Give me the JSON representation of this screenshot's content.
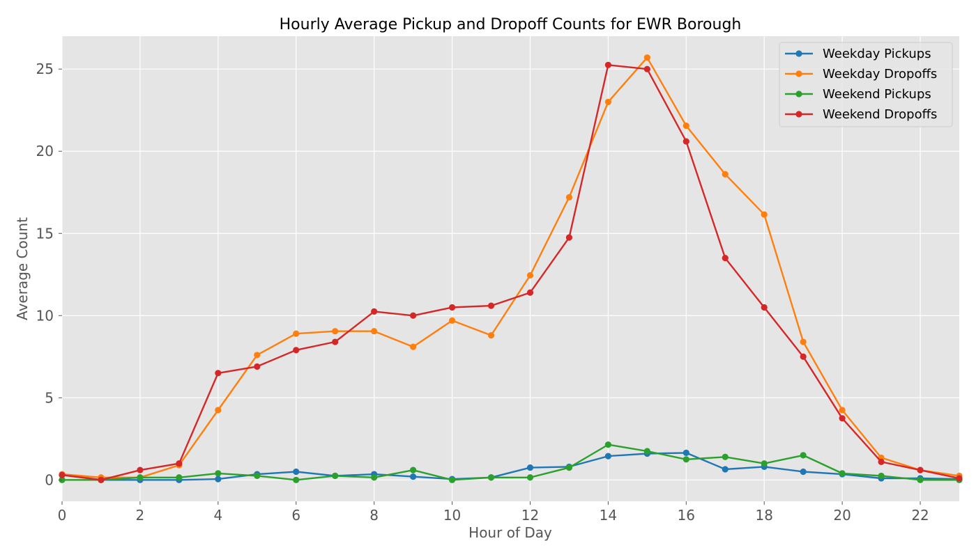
{
  "chart_data": {
    "type": "line",
    "title": "Hourly Average Pickup and Dropoff Counts for EWR Borough",
    "xlabel": "Hour of Day",
    "ylabel": "Average Count",
    "xlim": [
      0,
      23
    ],
    "ylim": [
      -1.3,
      27
    ],
    "xticks": [
      0,
      2,
      4,
      6,
      8,
      10,
      12,
      14,
      16,
      18,
      20,
      22
    ],
    "yticks": [
      0,
      5,
      10,
      15,
      20,
      25
    ],
    "grid": true,
    "legend_position": "top-right",
    "x": [
      0,
      1,
      2,
      3,
      4,
      5,
      6,
      7,
      8,
      9,
      10,
      11,
      12,
      13,
      14,
      15,
      16,
      17,
      18,
      19,
      20,
      21,
      22,
      23
    ],
    "series": [
      {
        "name": "Weekday Pickups",
        "color": "#1f77b4",
        "values": [
          0.3,
          0.0,
          0.0,
          0.0,
          0.05,
          0.35,
          0.5,
          0.25,
          0.35,
          0.2,
          0.05,
          0.15,
          0.75,
          0.8,
          1.45,
          1.6,
          1.65,
          0.65,
          0.8,
          0.5,
          0.35,
          0.1,
          0.1,
          0.05
        ]
      },
      {
        "name": "Weekday Dropoffs",
        "color": "#ff7f0e",
        "values": [
          0.35,
          0.15,
          0.15,
          0.9,
          4.25,
          7.6,
          8.9,
          9.05,
          9.05,
          8.1,
          9.7,
          8.8,
          12.45,
          17.2,
          23.0,
          25.7,
          21.55,
          18.6,
          16.15,
          8.4,
          4.25,
          1.35,
          0.6,
          0.25
        ]
      },
      {
        "name": "Weekend Pickups",
        "color": "#2ca02c",
        "values": [
          0.0,
          0.0,
          0.15,
          0.15,
          0.4,
          0.25,
          0.0,
          0.25,
          0.15,
          0.6,
          0.0,
          0.15,
          0.15,
          0.75,
          2.15,
          1.75,
          1.25,
          1.4,
          1.0,
          1.5,
          0.4,
          0.25,
          0.0,
          0.0
        ]
      },
      {
        "name": "Weekend Dropoffs",
        "color": "#d62728",
        "values": [
          0.3,
          0.0,
          0.6,
          1.0,
          6.5,
          6.9,
          7.9,
          8.4,
          10.25,
          10.0,
          10.5,
          10.6,
          11.4,
          14.75,
          25.25,
          25.0,
          20.6,
          13.5,
          10.5,
          7.5,
          3.75,
          1.1,
          0.6,
          0.1
        ]
      }
    ]
  }
}
